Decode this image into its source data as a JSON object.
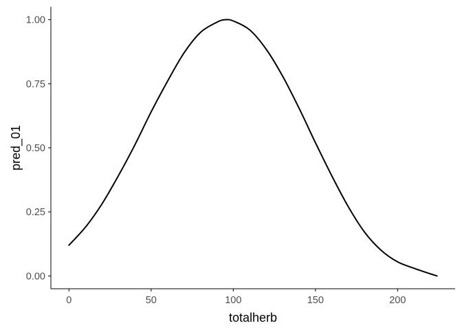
{
  "chart_data": {
    "type": "line",
    "xlabel": "totalherb",
    "ylabel": "pred_01",
    "xlim": [
      -11,
      235
    ],
    "ylim": [
      -0.05,
      1.05
    ],
    "x_ticks": [
      0,
      50,
      100,
      150,
      200
    ],
    "x_tick_labels": [
      "0",
      "50",
      "100",
      "150",
      "200"
    ],
    "y_ticks": [
      0,
      0.25,
      0.5,
      0.75,
      1.0
    ],
    "y_tick_labels": [
      "0.00",
      "0.25",
      "0.50",
      "0.75",
      "1.00"
    ],
    "grid": false,
    "legend": "none",
    "line_color": "#000000",
    "series": [
      {
        "x": [
          0,
          10,
          20,
          30,
          40,
          50,
          60,
          70,
          80,
          90,
          95,
          100,
          110,
          120,
          130,
          140,
          150,
          160,
          170,
          180,
          190,
          200,
          210,
          220,
          224
        ],
        "y": [
          0.12,
          0.19,
          0.28,
          0.39,
          0.51,
          0.64,
          0.76,
          0.87,
          0.95,
          0.99,
          1.0,
          0.995,
          0.96,
          0.885,
          0.78,
          0.655,
          0.52,
          0.39,
          0.27,
          0.17,
          0.1,
          0.055,
          0.03,
          0.008,
          0.0
        ]
      }
    ]
  }
}
